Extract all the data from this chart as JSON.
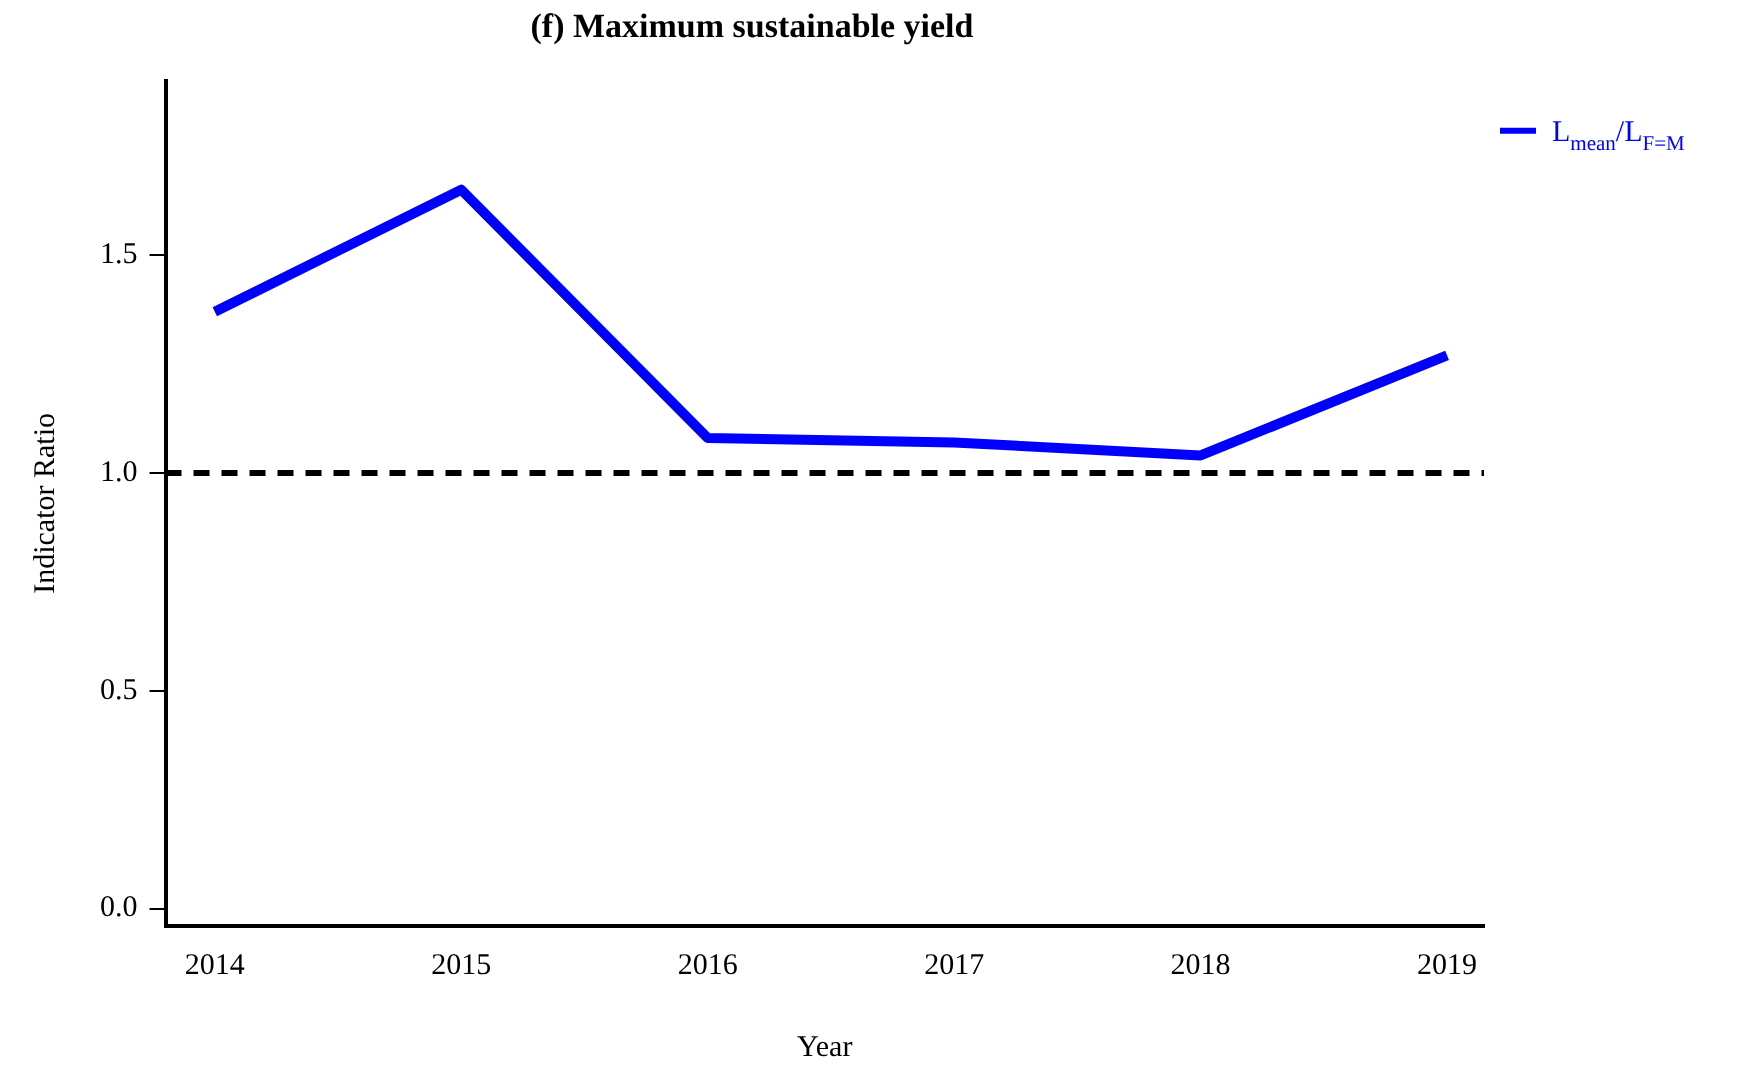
{
  "chart_data": {
    "type": "line",
    "title": "(f) Maximum sustainable yield",
    "xlabel": "Year",
    "ylabel": "Indicator Ratio",
    "x": [
      2014,
      2015,
      2016,
      2017,
      2018,
      2019
    ],
    "series": [
      {
        "name": "L$_{mean}$/L$_{F=M}$",
        "color": "#0000ff",
        "values": [
          1.37,
          1.65,
          1.08,
          1.07,
          1.04,
          1.27
        ]
      }
    ],
    "xlim": [
      2013.8,
      2019.15
    ],
    "xticks": [
      2014,
      2015,
      2016,
      2017,
      2018,
      2019
    ],
    "ylim": [
      -0.04,
      1.9
    ],
    "yticks": [
      {
        "value": 0,
        "label": "0.0"
      },
      0.5,
      {
        "value": 1,
        "label": "1.0"
      },
      1.5
    ],
    "ref_lines": [
      {
        "axis": "y",
        "value": 1,
        "color": "#000000",
        "line_style": "dashed"
      }
    ],
    "legend": "top right",
    "grid": false,
    "marker": "none",
    "line_style": "solid"
  }
}
